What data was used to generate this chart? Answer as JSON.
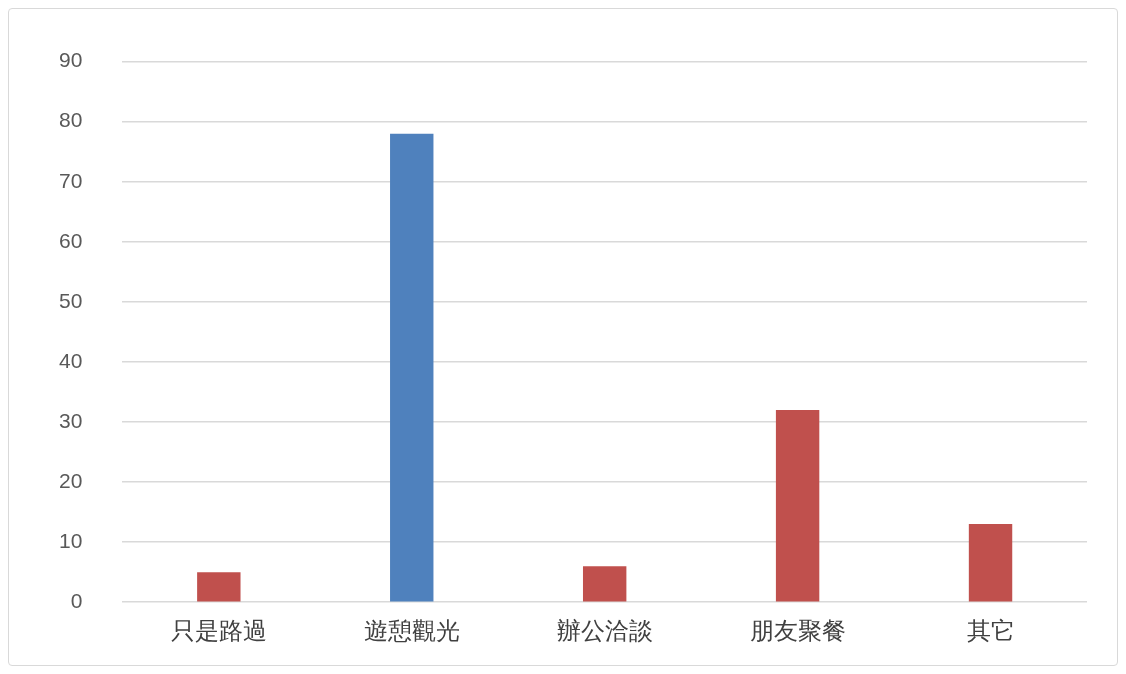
{
  "chart_data": {
    "type": "bar",
    "categories": [
      "只是路過",
      "遊憩觀光",
      "辦公洽談",
      "朋友聚餐",
      "其它"
    ],
    "values": [
      5,
      78,
      6,
      32,
      13
    ],
    "colors": [
      "#c0504d",
      "#4f81bd",
      "#c0504d",
      "#c0504d",
      "#c0504d"
    ],
    "ylim": [
      0,
      90
    ],
    "yticks": [
      0,
      10,
      20,
      30,
      40,
      50,
      60,
      70,
      80,
      90
    ],
    "grid": "y",
    "legend": false
  }
}
